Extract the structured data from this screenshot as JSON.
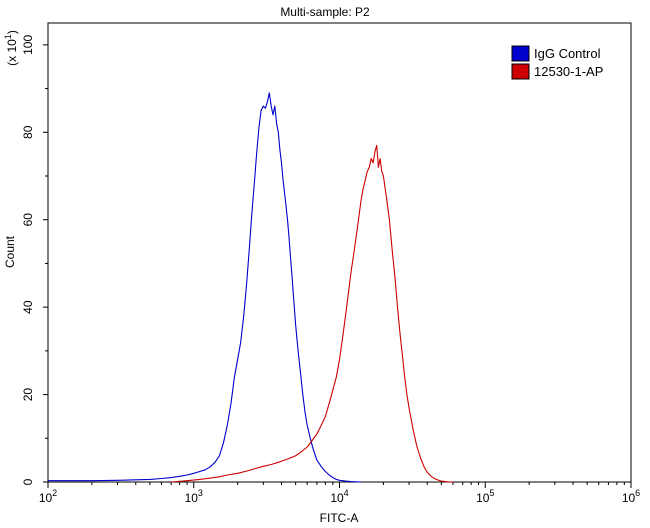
{
  "chart_data": {
    "type": "line",
    "title": "Multi-sample: P2",
    "xlabel": "FITC-A",
    "ylabel": "Count",
    "y_multiplier_label": "(x 10^1)",
    "x_scale": "log",
    "xlim": [
      100,
      1000000
    ],
    "ylim": [
      0,
      105
    ],
    "x_ticks": [
      100,
      1000,
      10000,
      100000,
      1000000
    ],
    "x_tick_labels": [
      {
        "base": "10",
        "exp": "2"
      },
      {
        "base": "10",
        "exp": "3"
      },
      {
        "base": "10",
        "exp": "4"
      },
      {
        "base": "10",
        "exp": "5"
      },
      {
        "base": "10",
        "exp": "6"
      }
    ],
    "y_ticks": [
      0,
      20,
      40,
      60,
      80,
      100
    ],
    "y_tick_labels": [
      "0",
      "20",
      "40",
      "60",
      "80",
      "100"
    ],
    "legend": {
      "placement": "top-right"
    },
    "grid": false,
    "series": [
      {
        "name": "IgG Control",
        "color": "#0000cc",
        "x": [
          100,
          200,
          300,
          400,
          500,
          600,
          700,
          800,
          900,
          1000,
          1100,
          1200,
          1300,
          1400,
          1500,
          1600,
          1700,
          1800,
          1900,
          2000,
          2100,
          2200,
          2300,
          2400,
          2500,
          2600,
          2700,
          2800,
          2900,
          3000,
          3100,
          3200,
          3300,
          3400,
          3500,
          3600,
          3700,
          3800,
          3900,
          4000,
          4100,
          4200,
          4300,
          4400,
          4500,
          4600,
          4700,
          4800,
          4900,
          5000,
          5200,
          5400,
          5600,
          5800,
          6000,
          6300,
          6600,
          7000,
          7500,
          8000,
          8500,
          9000,
          9500,
          10000,
          10500,
          11000,
          12000,
          13000,
          14000
        ],
        "y": [
          0.3,
          0.3,
          0.4,
          0.5,
          0.6,
          0.8,
          1.0,
          1.3,
          1.6,
          2.0,
          2.4,
          2.8,
          3.5,
          4.5,
          6.0,
          9.0,
          13.0,
          18.0,
          24.0,
          28.0,
          32.0,
          38.0,
          45.0,
          53.0,
          61.0,
          68.0,
          75.0,
          81.0,
          85.0,
          86.0,
          85.5,
          87.0,
          89.0,
          86.0,
          84.0,
          86.0,
          82.0,
          80.0,
          76.0,
          73.0,
          69.0,
          66.0,
          63.0,
          60.0,
          56.0,
          52.0,
          48.0,
          44.0,
          40.0,
          36.0,
          30.0,
          25.0,
          20.0,
          16.0,
          13.0,
          10.0,
          7.5,
          5.0,
          3.5,
          2.4,
          1.6,
          1.0,
          0.6,
          0.4,
          0.3,
          0.2,
          0.1,
          0.05,
          0.0
        ]
      },
      {
        "name": "12530-1-AP",
        "color": "#cc0000",
        "x": [
          700,
          900,
          1100,
          1300,
          1500,
          1700,
          2000,
          2300,
          2600,
          3000,
          3400,
          3800,
          4200,
          4600,
          5000,
          5500,
          6000,
          6500,
          7000,
          7500,
          8000,
          8500,
          9000,
          9500,
          10000,
          10500,
          11000,
          11500,
          12000,
          12500,
          13000,
          13500,
          14000,
          14500,
          15000,
          15500,
          16000,
          16500,
          17000,
          17500,
          18000,
          18500,
          19000,
          19500,
          20000,
          21000,
          22000,
          23000,
          24000,
          25000,
          26000,
          27000,
          28000,
          29000,
          30000,
          32000,
          34000,
          36000,
          38000,
          40000,
          43000,
          46000,
          50000,
          55000,
          60000
        ],
        "y": [
          0.0,
          0.3,
          0.6,
          0.9,
          1.2,
          1.6,
          2.0,
          2.5,
          3.0,
          3.6,
          4.0,
          4.5,
          5.0,
          5.5,
          6.0,
          7.0,
          8.0,
          9.5,
          11.0,
          13.0,
          15.0,
          18.0,
          21.0,
          24.0,
          28.0,
          33.0,
          38.0,
          43.0,
          48.0,
          52.0,
          56.0,
          60.0,
          64.0,
          67.0,
          69.0,
          71.0,
          72.0,
          74.0,
          73.0,
          75.5,
          77.0,
          72.0,
          74.0,
          71.0,
          70.0,
          65.0,
          60.0,
          53.0,
          47.0,
          40.0,
          34.0,
          29.0,
          24.0,
          20.0,
          17.0,
          12.0,
          8.0,
          5.5,
          3.5,
          2.2,
          1.2,
          0.6,
          0.2,
          0.05,
          0.0
        ]
      }
    ]
  }
}
